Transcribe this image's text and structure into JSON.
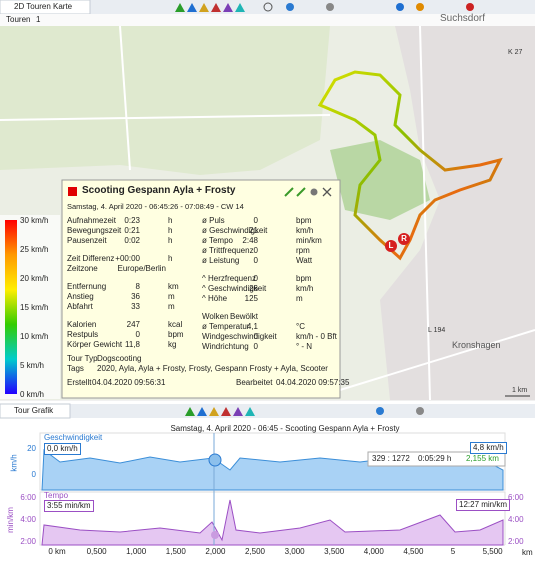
{
  "top_tab": {
    "title": "2D Touren Karte",
    "subtab": "Touren",
    "subtab_count": "1"
  },
  "map": {
    "labels": [
      "Suchsdorf",
      "K 27",
      "L 194",
      "Kronshagen",
      "1 km"
    ],
    "markers": [
      "L",
      "R"
    ]
  },
  "legend": {
    "labels": [
      "30 km/h",
      "25 km/h",
      "20 km/h",
      "15 km/h",
      "10 km/h",
      "5 km/h",
      "0 km/h"
    ]
  },
  "tour_info": {
    "title": "Scooting Gespann Ayla + Frosty",
    "date": "Samstag, 4. April 2020 - 06:45:26 - 07:08:49 - CW 14",
    "left": [
      [
        [
          "Aufnahmezeit",
          "0:23",
          "h"
        ],
        [
          "Bewegungszeit",
          "0:21",
          "h"
        ],
        [
          "Pausenzeit",
          "0:02",
          "h"
        ]
      ],
      [
        [
          "Zeit Differenz",
          "+00:00",
          "h"
        ],
        [
          "Zeitzone",
          "Europe/Berlin",
          ""
        ]
      ],
      [
        [
          "Entfernung",
          "8",
          "km"
        ],
        [
          "Anstieg",
          "36",
          "m"
        ],
        [
          "Abfahrt",
          "33",
          "m"
        ]
      ],
      [
        [
          "Kalorien",
          "247",
          "kcal"
        ],
        [
          "Restpuls",
          "0",
          "bpm"
        ],
        [
          "Körper Gewicht",
          "11,8",
          "kg"
        ]
      ]
    ],
    "right": [
      [
        [
          "ø Puls",
          "0",
          "bpm"
        ],
        [
          "ø Geschwindigkeit",
          "21",
          "km/h"
        ],
        [
          "ø Tempo",
          "2:48",
          "min/km"
        ],
        [
          "ø Trittfrequenz",
          "0",
          "rpm"
        ],
        [
          "ø Leistung",
          "0",
          "Watt"
        ]
      ],
      [
        [
          "^ Herzfrequenz",
          "0",
          "bpm"
        ],
        [
          "^ Geschwindigkeit",
          "26",
          "km/h"
        ],
        [
          "^ Höhe",
          "125",
          "m"
        ]
      ],
      [
        [
          "Wolken",
          "Bewölkt",
          ""
        ],
        [
          "ø Temperatur",
          "4,1",
          "°C"
        ],
        [
          "Windgeschwindigkeit",
          "0",
          "km/h - 0 Bft"
        ],
        [
          "Windrichtung",
          "0",
          "° - N"
        ]
      ]
    ],
    "tour_type_label": "Tour Typ",
    "tour_type": "Dogscooting",
    "tags_label": "Tags",
    "tags": "2020, Ayla, Ayla + Frosty, Frosty, Gespann Frosty + Ayla, Scooter",
    "created_label": "Erstellt",
    "created": "04.04.2020 09:56:31",
    "edited_label": "Bearbeitet",
    "edited": "04.04.2020 09:57:35"
  },
  "tour_graph": {
    "tab": "Tour Grafik",
    "title": "Samstag, 4. April 2020 - 06:45 - Scooting Gespann Ayla + Frosty",
    "speed_name": "Geschwindigkeit",
    "speed_unit": "km/h",
    "speed_ticks": [
      "20",
      "0"
    ],
    "speed_min": "0,0 km/h",
    "speed_max": "4,8 km/h",
    "tempo_name": "Tempo",
    "tempo_unit": "min/km",
    "tempo_ticks": [
      "6:00",
      "4:00",
      "2:00"
    ],
    "tempo_min": "3:55 min/km",
    "tempo_max": "12:27 min/km",
    "hover": [
      "329 : 1272",
      "0:05:29 h",
      "2,155 km"
    ],
    "x_ticks": [
      "0 km",
      "0,500",
      "1,000",
      "1,500",
      "2,000",
      "2,500",
      "3,000",
      "3,500",
      "4,000",
      "4,500",
      "5",
      "5,500"
    ],
    "x_unit": "km"
  }
}
